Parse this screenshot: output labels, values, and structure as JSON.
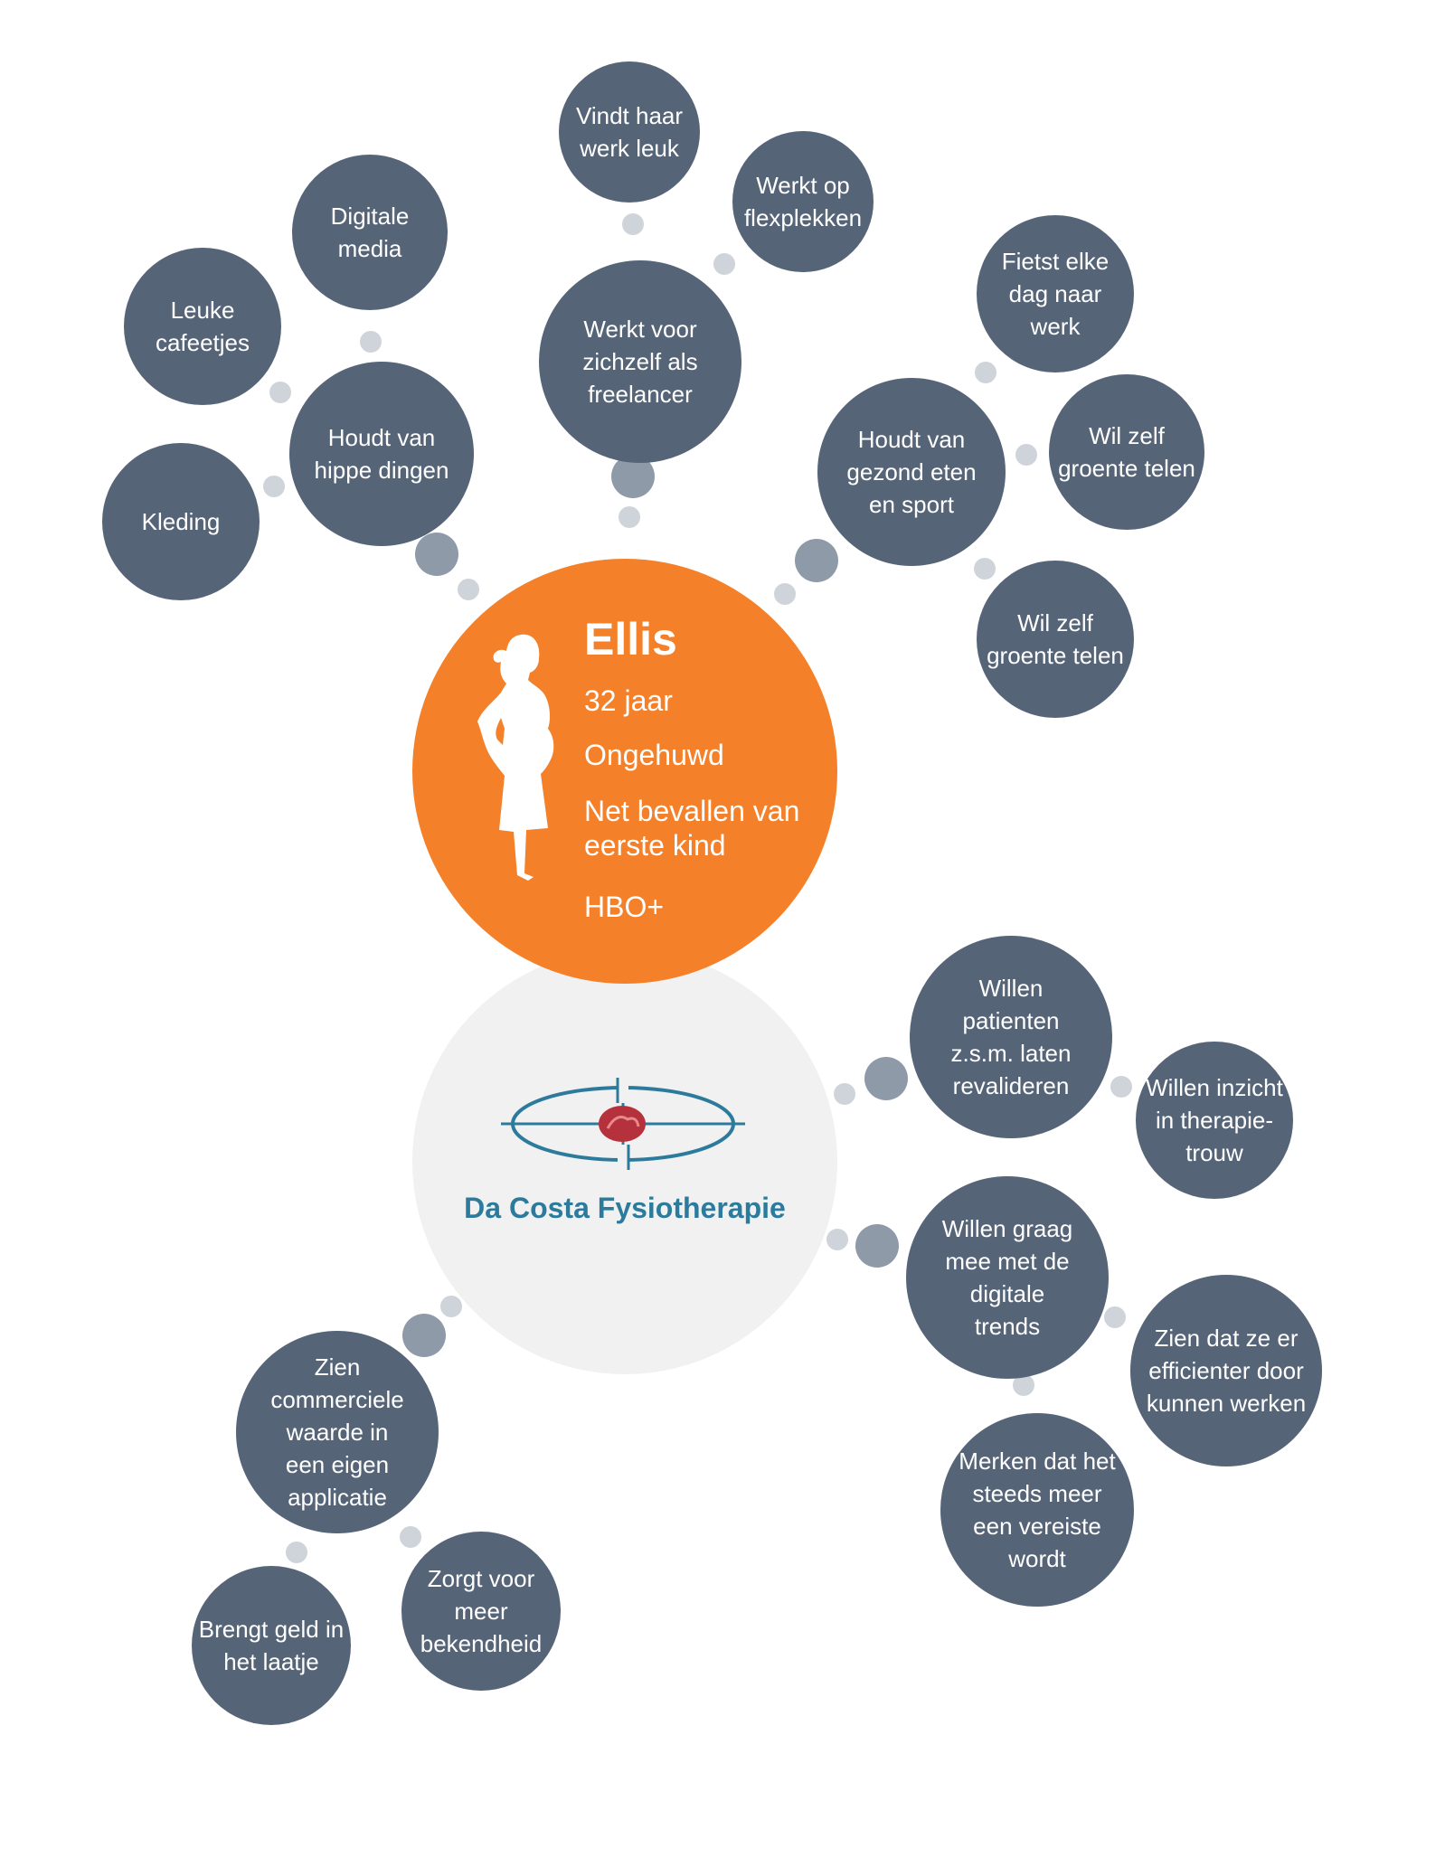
{
  "persona": {
    "name": "Ellis",
    "age": "32 jaar",
    "status": "Ongehuwd",
    "event": "Net bevallen van\neerste kind",
    "education": "HBO+"
  },
  "company": {
    "name": "Da Costa Fysiotherapie"
  },
  "bubbles": {
    "vindt_haar_werk_leuk": "Vindt haar\nwerk leuk",
    "werkt_op_flexplekken": "Werkt op\nflexplekken",
    "werkt_voor_zichzelf": "Werkt voor\nzichzelf als\nfreelancer",
    "digitale_media": "Digitale\nmedia",
    "leuke_cafeetjes": "Leuke\ncafeetjes",
    "houdt_van_hippe_dingen": "Houdt van\nhippe dingen",
    "kleding": "Kleding",
    "fietst_elke_dag": "Fietst elke\ndag naar\nwerk",
    "houdt_van_gezond_eten": "Houdt van\ngezond eten\nen sport",
    "groente_telen_1": "Wil zelf\ngroente telen",
    "groente_telen_2": "Wil zelf\ngroente telen",
    "willen_revalideren": "Willen\npatienten\nz.s.m. laten\nrevalideren",
    "willen_inzicht": "Willen inzicht\nin therapie-\ntrouw",
    "digitale_trends": "Willen graag\nmee met de\ndigitale\ntrends",
    "efficienter_werken": "Zien dat ze er\nefficienter door\nkunnen werken",
    "vereiste": "Merken dat het\nsteeds meer\neen vereiste\nwordt",
    "commerciele_waarde": "Zien\ncommerciele\nwaarde in\neen eigen\napplicatie",
    "geld_in_het_laatje": "Brengt geld in\nhet laatje",
    "bekendheid": "Zorgt voor\nmeer\nbekendheid"
  },
  "colors": {
    "bubble": "#566478",
    "persona": "#f48029",
    "company_bg": "#f1f1f1",
    "company_text": "#2d7b9c",
    "dot_light": "#cfd3da",
    "dot_mid": "#8f9aa8",
    "logo_center": "#b5323c"
  },
  "icons": [
    "woman-silhouette-icon",
    "fysio-logo-icon"
  ]
}
